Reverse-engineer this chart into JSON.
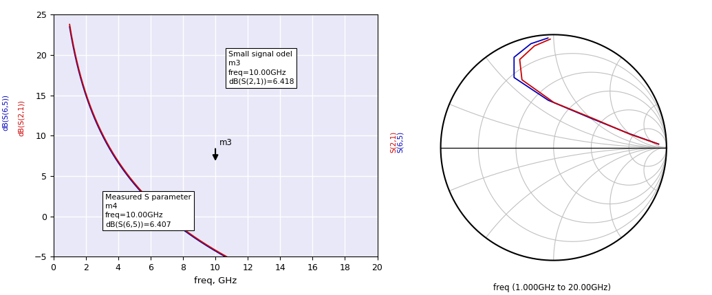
{
  "left_plot": {
    "xlim": [
      0,
      20
    ],
    "ylim": [
      -5,
      25
    ],
    "yticks": [
      -5,
      0,
      5,
      10,
      15,
      20,
      25
    ],
    "xticks": [
      0,
      2,
      4,
      6,
      8,
      10,
      12,
      14,
      16,
      18,
      20
    ],
    "xlabel": "freq, GHz",
    "ylabel_blue": "dB(S(6,5))",
    "ylabel_red": "dB(S(2,1))",
    "color_blue": "#0000bb",
    "color_red": "#cc0000",
    "bg_color": "#e8e8f8",
    "grid_color": "#ffffff",
    "box1_title": "Small signal odel",
    "box1_text": "m3\nfreq=10.00GHz\ndB(S(2,1))=6.418",
    "box2_title": "Measured S parameter",
    "box2_text": "m4\nfreq=10.00GHz\ndB(S(6,5))=6.407",
    "marker_label": "m3",
    "marker_freq": 10.0,
    "marker_val": 6.418
  },
  "right_plot": {
    "xlabel": "freq (1.000GHz to 20.00GHz)",
    "legend_red": "S(2,1)",
    "legend_blue": "S(6,5)",
    "color_blue": "#0000bb",
    "color_red": "#cc0000",
    "smith_color": "#c0c0c0",
    "smith_lw": 0.8,
    "outer_lw": 1.5,
    "trace_lw": 1.3
  }
}
